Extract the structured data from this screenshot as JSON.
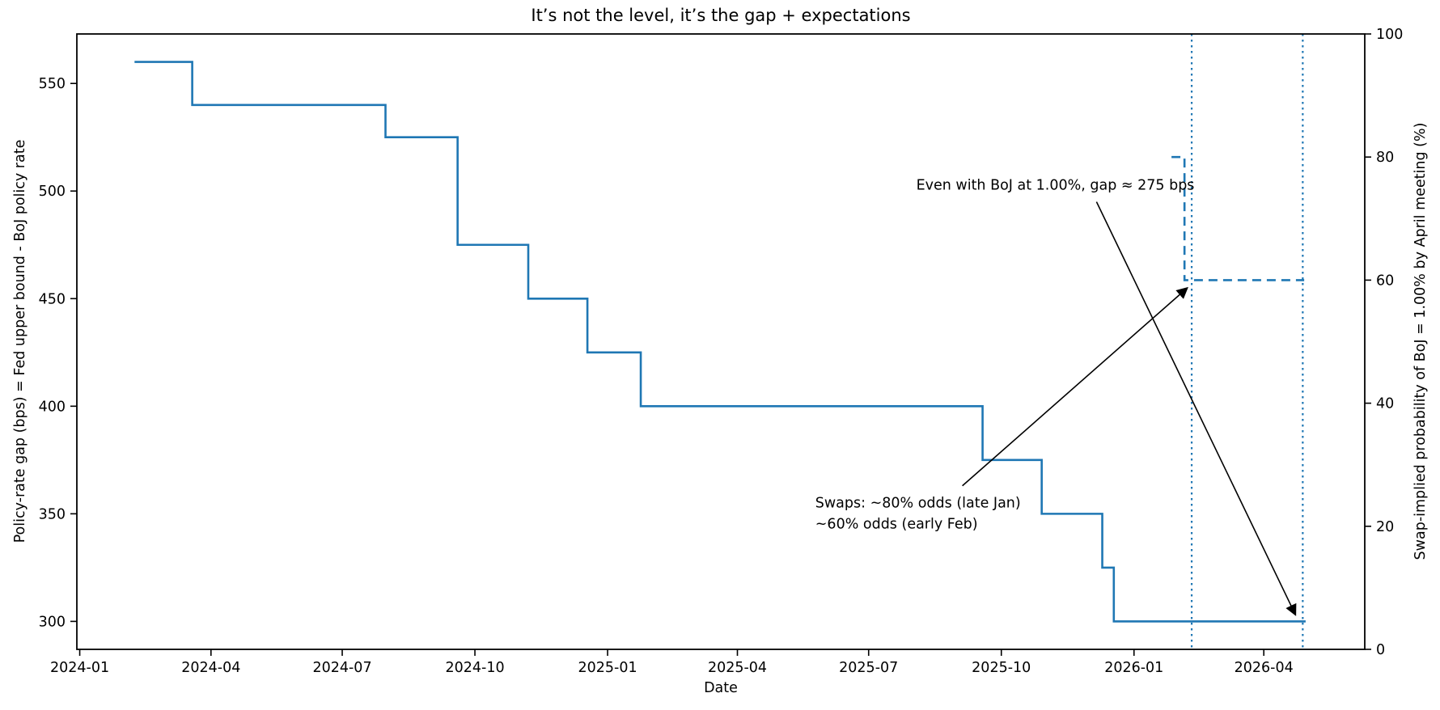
{
  "chart_data": {
    "type": "line",
    "subtype": "step-post",
    "title": "It’s not the level, it’s the gap + expectations",
    "xlabel": "Date",
    "ylabel_left": "Policy-rate gap (bps) = Fed upper bound - BoJ policy rate",
    "ylabel_right": "Swap-implied probability of BoJ = 1.00% by April meeting (%)",
    "x_ticks": [
      "2024-01",
      "2024-04",
      "2024-07",
      "2024-10",
      "2025-01",
      "2025-04",
      "2025-07",
      "2025-10",
      "2026-01",
      "2026-04"
    ],
    "left_ticks": [
      300,
      350,
      400,
      450,
      500,
      550
    ],
    "right_ticks": [
      0,
      20,
      40,
      60,
      80,
      100
    ],
    "x_range": [
      "2023-12-30",
      "2026-06-10"
    ],
    "left_ylim": [
      287,
      573
    ],
    "right_ylim": [
      0,
      100
    ],
    "grid": false,
    "legend": "none",
    "line_color": "#1f77b4",
    "series": [
      {
        "name": "policy-rate-gap-bps",
        "axis": "left",
        "line_style": "solid",
        "color": "#1f77b4",
        "points": [
          [
            "2024-02-08",
            560
          ],
          [
            "2024-03-19",
            540
          ],
          [
            "2024-07-31",
            525
          ],
          [
            "2024-09-19",
            475
          ],
          [
            "2024-11-07",
            450
          ],
          [
            "2024-12-18",
            425
          ],
          [
            "2025-01-24",
            400
          ],
          [
            "2025-09-18",
            375
          ],
          [
            "2025-10-29",
            350
          ],
          [
            "2025-12-10",
            325
          ],
          [
            "2025-12-18",
            300
          ],
          [
            "2026-04-30",
            300
          ]
        ]
      },
      {
        "name": "swap-implied-probability-pct",
        "axis": "right",
        "line_style": "dashed",
        "color": "#1f77b4",
        "points": [
          [
            "2026-01-27",
            80
          ],
          [
            "2026-02-05",
            60
          ],
          [
            "2026-04-29",
            60
          ]
        ]
      }
    ],
    "vlines": [
      {
        "date": "2026-02-10",
        "style": "dotted",
        "color": "#1f77b4"
      },
      {
        "date": "2026-04-28",
        "style": "dotted",
        "color": "#1f77b4"
      }
    ],
    "annotations": [
      {
        "name": "gap-annotation",
        "lines": [
          "Even with BoJ at 1.00%, gap ≈ 275 bps"
        ],
        "text_date": "2025-08-03",
        "text_value": 503,
        "anchor": "left-middle",
        "arrow": {
          "from_date": "2025-12-06",
          "from_value": 495,
          "to_date": "2026-04-23",
          "to_value": 303
        }
      },
      {
        "name": "swaps-annotation",
        "lines": [
          "Swaps: ~80% odds (late Jan)",
          "~60% odds (early Feb)"
        ],
        "text_date": "2025-05-25",
        "text_value": 359,
        "anchor": "left-top",
        "arrow": {
          "from_date": "2025-09-04",
          "from_value": 363,
          "to_date": "2026-02-07",
          "to_value": 455
        }
      }
    ]
  }
}
